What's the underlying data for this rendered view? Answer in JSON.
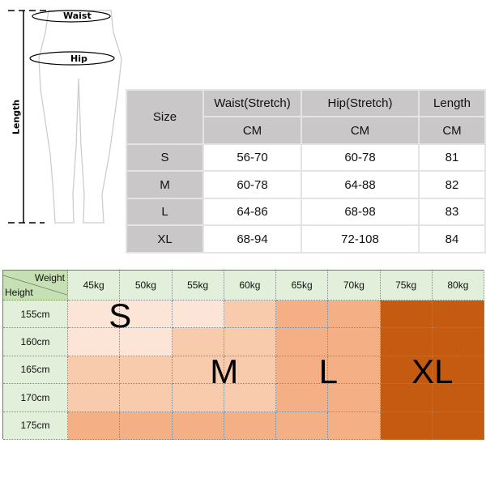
{
  "figure": {
    "waist_label": "Waist",
    "hip_label": "Hip",
    "length_label": "Length"
  },
  "size_table": {
    "headers": {
      "size": "Size",
      "waist": "Waist(Stretch)",
      "hip": "Hip(Stretch)",
      "length": "Length"
    },
    "units": {
      "waist": "CM",
      "hip": "CM",
      "length": "CM"
    },
    "rows": [
      {
        "size": "S",
        "waist": "56-70",
        "hip": "60-78",
        "length": "81"
      },
      {
        "size": "M",
        "waist": "60-78",
        "hip": "64-88",
        "length": "82"
      },
      {
        "size": "L",
        "waist": "64-86",
        "hip": "68-98",
        "length": "83"
      },
      {
        "size": "XL",
        "waist": "68-94",
        "hip": "72-108",
        "length": "84"
      }
    ]
  },
  "weight_chart": {
    "corner_weight": "Weight",
    "corner_height": "Height",
    "weights": [
      "45kg",
      "50kg",
      "55kg",
      "60kg",
      "65kg",
      "70kg",
      "75kg",
      "80kg"
    ],
    "heights": [
      "155cm",
      "160cm",
      "165cm",
      "170cm",
      "175cm"
    ],
    "map": [
      [
        "S",
        "S",
        "S",
        "M",
        "L",
        "L",
        "XL",
        "XL"
      ],
      [
        "S",
        "S",
        "M",
        "M",
        "L",
        "L",
        "XL",
        "XL"
      ],
      [
        "M",
        "M",
        "M",
        "M",
        "L",
        "L",
        "XL",
        "XL"
      ],
      [
        "M",
        "M",
        "M",
        "M",
        "L",
        "L",
        "XL",
        "XL"
      ],
      [
        "L",
        "L",
        "L",
        "L",
        "L",
        "L",
        "XL",
        "XL"
      ]
    ],
    "size_labels": {
      "S": "S",
      "M": "M",
      "L": "L",
      "XL": "XL"
    },
    "colors": {
      "S": "#fce4d6",
      "M": "#f8cbad",
      "L": "#f4b084",
      "XL": "#c55a11",
      "header": "#e2efda",
      "corner": "#c6e0b4"
    }
  }
}
